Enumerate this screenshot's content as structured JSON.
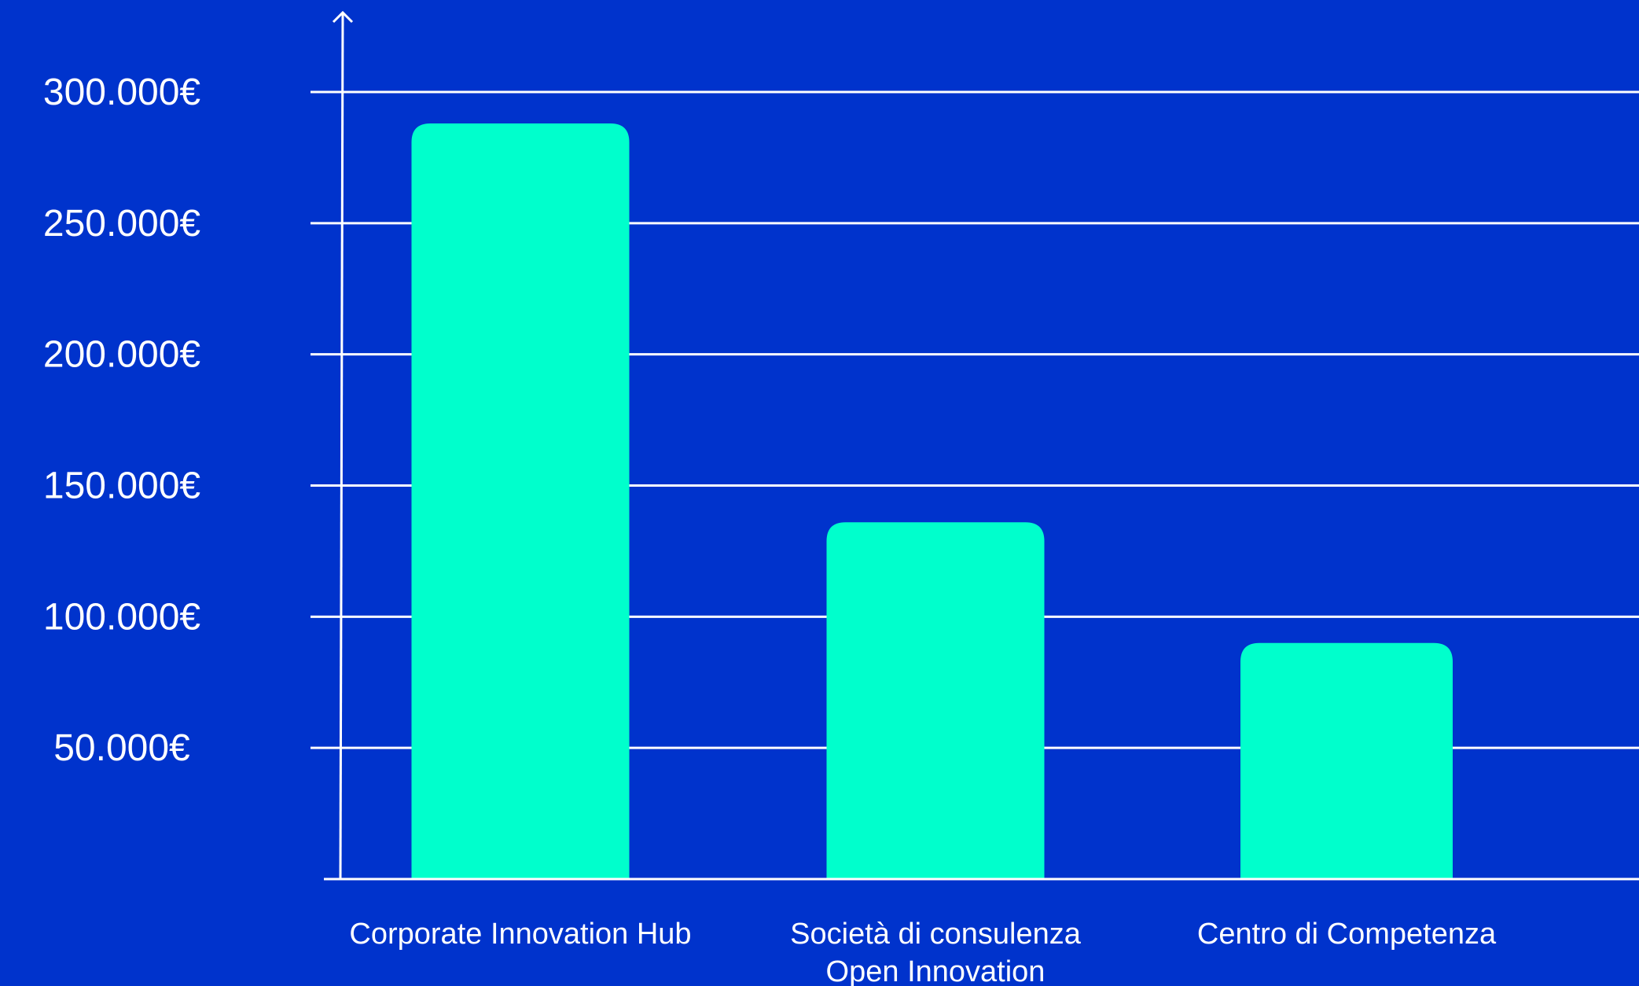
{
  "chart_data": {
    "type": "bar",
    "title": "",
    "xlabel": "",
    "ylabel": "",
    "categories": [
      [
        "Corporate Innovation Hub"
      ],
      [
        "Società di consulenza",
        "Open Innovation"
      ],
      [
        "Centro di Competenza"
      ]
    ],
    "values": [
      288000,
      136000,
      90000
    ],
    "ylim": [
      0,
      300000
    ],
    "yticks": [
      50000,
      100000,
      150000,
      200000,
      250000,
      300000
    ],
    "ytick_labels": [
      "50.000€",
      "100.000€",
      "150.000€",
      "200.000€",
      "250.000€",
      "300.000€"
    ],
    "grid": true,
    "legend": "none",
    "colors": {
      "background": "#0033cc",
      "bar": "#00ffcc",
      "axis": "#ffffff",
      "text": "#ffffff"
    }
  }
}
